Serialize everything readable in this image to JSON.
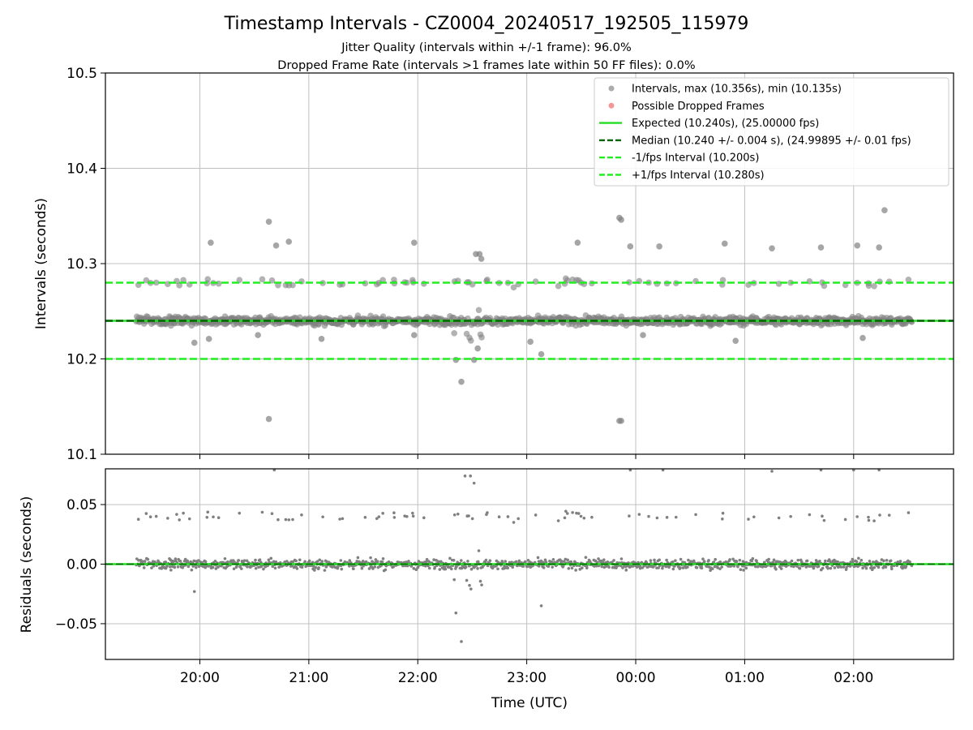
{
  "title": "Timestamp Intervals - CZ0004_20240517_192505_115979",
  "subtitle_1": "Jitter Quality (intervals within +/-1 frame): 96.0%",
  "subtitle_2": "Dropped Frame Rate (intervals >1 frames late within 50 FF files): 0.0%",
  "xlabel": "Time (UTC)",
  "colors": {
    "points": "#808080",
    "dropped": "#f06060",
    "expected": "#22dd22",
    "median": "#006400",
    "fps_interval": "#22ee22",
    "grid": "#c0c0c0"
  },
  "chart_data": [
    {
      "type": "scatter",
      "ylabel": "Intervals (seconds)",
      "ylim": [
        10.1,
        10.5
      ],
      "yticks": [
        10.1,
        10.2,
        10.3,
        10.4,
        10.5
      ],
      "ytick_labels": [
        "10.1",
        "10.2",
        "10.3",
        "10.4",
        "10.5"
      ],
      "xlim": [
        "19:08",
        "02:55"
      ],
      "xticks": [
        "20:00",
        "21:00",
        "22:00",
        "23:00",
        "00:00",
        "01:00",
        "02:00"
      ],
      "grid": true,
      "legend_placement": "top-right",
      "series": [
        {
          "name": "Intervals, max (10.356s), min (10.135s)",
          "kind": "points",
          "color": "#808080"
        },
        {
          "name": "Possible Dropped Frames",
          "kind": "points",
          "color": "#f06060",
          "values": []
        },
        {
          "name": "Expected (10.240s), (25.00000 fps)",
          "kind": "hline",
          "y": 10.24,
          "style": "solid",
          "color": "#22dd22"
        },
        {
          "name": "Median (10.240 +/- 0.004 s), (24.99895 +/- 0.01 fps)",
          "kind": "hline",
          "y": 10.24,
          "style": "dashed",
          "color": "#006400"
        },
        {
          "name": "-1/fps Interval (10.200s)",
          "kind": "hline",
          "y": 10.2,
          "style": "dashed",
          "color": "#22ee22"
        },
        {
          "name": "+1/fps Interval (10.280s)",
          "kind": "hline",
          "y": 10.28,
          "style": "dashed",
          "color": "#22ee22"
        }
      ],
      "outliers": [
        {
          "x": "20:06",
          "y": 10.322
        },
        {
          "x": "20:38",
          "y": 10.344
        },
        {
          "x": "20:42",
          "y": 10.319
        },
        {
          "x": "20:49",
          "y": 10.323
        },
        {
          "x": "21:58",
          "y": 10.322
        },
        {
          "x": "22:32",
          "y": 10.31
        },
        {
          "x": "22:34",
          "y": 10.31
        },
        {
          "x": "22:35",
          "y": 10.305
        },
        {
          "x": "23:28",
          "y": 10.322
        },
        {
          "x": "23:51",
          "y": 10.348
        },
        {
          "x": "23:52",
          "y": 10.346
        },
        {
          "x": "23:57",
          "y": 10.318
        },
        {
          "x": "00:13",
          "y": 10.318
        },
        {
          "x": "00:49",
          "y": 10.321
        },
        {
          "x": "01:15",
          "y": 10.316
        },
        {
          "x": "01:42",
          "y": 10.317
        },
        {
          "x": "02:02",
          "y": 10.319
        },
        {
          "x": "02:14",
          "y": 10.317
        },
        {
          "x": "02:17",
          "y": 10.356
        },
        {
          "x": "20:38",
          "y": 10.137
        },
        {
          "x": "23:51",
          "y": 10.135
        },
        {
          "x": "23:52",
          "y": 10.135
        },
        {
          "x": "22:24",
          "y": 10.176
        },
        {
          "x": "19:57",
          "y": 10.217
        },
        {
          "x": "20:05",
          "y": 10.221
        },
        {
          "x": "21:07",
          "y": 10.221
        },
        {
          "x": "22:21",
          "y": 10.199
        },
        {
          "x": "22:31",
          "y": 10.199
        },
        {
          "x": "22:33",
          "y": 10.211
        },
        {
          "x": "23:02",
          "y": 10.218
        },
        {
          "x": "23:08",
          "y": 10.205
        },
        {
          "x": "00:04",
          "y": 10.225
        },
        {
          "x": "00:55",
          "y": 10.219
        },
        {
          "x": "02:05",
          "y": 10.222
        },
        {
          "x": "20:32",
          "y": 10.225
        },
        {
          "x": "21:58",
          "y": 10.225
        }
      ]
    },
    {
      "type": "scatter",
      "ylabel": "Residuals (seconds)",
      "ylim": [
        -0.08,
        0.08
      ],
      "yticks": [
        -0.05,
        0.0,
        0.05
      ],
      "ytick_labels": [
        "−0.05",
        "0.00",
        "0.05"
      ],
      "xlim": [
        "19:08",
        "02:55"
      ],
      "xticks": [
        "20:00",
        "21:00",
        "22:00",
        "23:00",
        "00:00",
        "01:00",
        "02:00"
      ],
      "xtick_labels": [
        "20:00",
        "21:00",
        "22:00",
        "23:00",
        "00:00",
        "01:00",
        "02:00"
      ],
      "grid": true,
      "series": [
        {
          "name": "residuals",
          "kind": "points",
          "color": "#808080"
        },
        {
          "name": "zero",
          "kind": "hline",
          "y": 0.0,
          "color": "#22dd22"
        }
      ],
      "outliers": [
        {
          "x": "22:26",
          "y": 0.074
        },
        {
          "x": "22:29",
          "y": 0.074
        },
        {
          "x": "22:31",
          "y": 0.068
        },
        {
          "x": "20:41",
          "y": 0.079
        },
        {
          "x": "23:57",
          "y": 0.079
        },
        {
          "x": "00:15",
          "y": 0.079
        },
        {
          "x": "01:15",
          "y": 0.078
        },
        {
          "x": "01:42",
          "y": 0.079
        },
        {
          "x": "02:00",
          "y": 0.079
        },
        {
          "x": "02:14",
          "y": 0.079
        },
        {
          "x": "22:24",
          "y": -0.065
        },
        {
          "x": "22:21",
          "y": -0.041
        },
        {
          "x": "23:08",
          "y": -0.035
        },
        {
          "x": "19:57",
          "y": -0.023
        }
      ]
    }
  ]
}
